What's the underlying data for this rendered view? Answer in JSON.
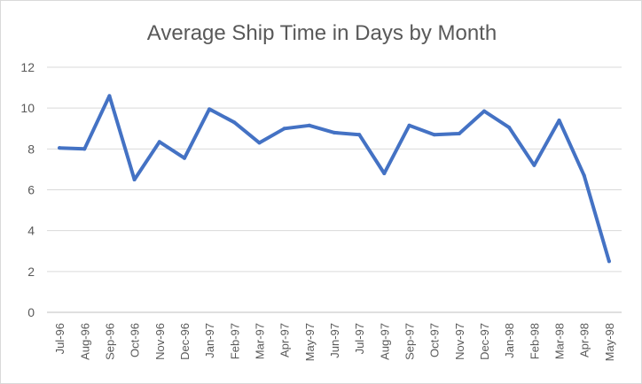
{
  "chart_data": {
    "type": "line",
    "title": "Average Ship Time in Days by Month",
    "xlabel": "",
    "ylabel": "",
    "ylim": [
      0,
      12
    ],
    "yticks": [
      0,
      2,
      4,
      6,
      8,
      10,
      12
    ],
    "grid": true,
    "legend": "none",
    "categories": [
      "Jul-96",
      "Aug-96",
      "Sep-96",
      "Oct-96",
      "Nov-96",
      "Dec-96",
      "Jan-97",
      "Feb-97",
      "Mar-97",
      "Apr-97",
      "May-97",
      "Jun-97",
      "Jul-97",
      "Aug-97",
      "Sep-97",
      "Oct-97",
      "Nov-97",
      "Dec-97",
      "Jan-98",
      "Feb-98",
      "Mar-98",
      "Apr-98",
      "May-98"
    ],
    "series": [
      {
        "color": "#4472c4",
        "values": [
          8.05,
          8.0,
          10.6,
          6.5,
          8.35,
          7.55,
          9.95,
          9.3,
          8.3,
          9.0,
          9.15,
          8.8,
          8.7,
          6.8,
          9.15,
          8.7,
          8.75,
          9.85,
          9.05,
          7.2,
          9.4,
          6.7,
          2.5
        ]
      }
    ]
  }
}
